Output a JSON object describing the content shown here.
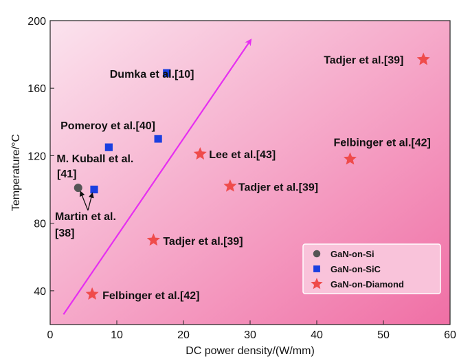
{
  "chart_data": {
    "type": "scatter",
    "title": "",
    "xlabel": "DC power density/(W/mm)",
    "ylabel": "Temperature/°C",
    "xlim": [
      0,
      60
    ],
    "ylim": [
      20,
      200
    ],
    "xticks": [
      0,
      10,
      20,
      30,
      40,
      50,
      60
    ],
    "yticks": [
      40,
      80,
      120,
      160,
      200
    ],
    "grid": false,
    "legend_position": "bottom-right",
    "background_gradient": [
      "#fbe3ee",
      "#f06fa5"
    ],
    "arrow": {
      "from": [
        2,
        26
      ],
      "to": [
        30,
        188
      ],
      "color": "#e62ff0"
    },
    "series": [
      {
        "name": "GaN-on-Si",
        "marker": "circle",
        "color": "#555555",
        "points": [
          {
            "x": 4.2,
            "y": 101,
            "label": ""
          }
        ]
      },
      {
        "name": "GaN-on-SiC",
        "marker": "square",
        "color": "#1a3fe0",
        "points": [
          {
            "x": 17.5,
            "y": 169,
            "label": "Dumka et al.[10]"
          },
          {
            "x": 16.2,
            "y": 130,
            "label": "Pomeroy et al.[40]"
          },
          {
            "x": 8.8,
            "y": 125,
            "label": "M. Kuball et al."
          },
          {
            "x": 6.6,
            "y": 100,
            "label": ""
          }
        ]
      },
      {
        "name": "GaN-on-Diamond",
        "marker": "star",
        "color": "#ef4b4b",
        "points": [
          {
            "x": 56,
            "y": 177,
            "label": "Tadjer et al.[39]"
          },
          {
            "x": 45,
            "y": 118,
            "label": "Felbinger et al.[42]"
          },
          {
            "x": 22.5,
            "y": 121,
            "label": "Lee et al.[43]"
          },
          {
            "x": 27,
            "y": 102,
            "label": "Tadjer et al.[39]"
          },
          {
            "x": 15.5,
            "y": 70,
            "label": "Tadjer et al.[39]"
          },
          {
            "x": 6.3,
            "y": 38,
            "label": "Felbinger et al.[42]"
          }
        ]
      }
    ],
    "annotations": [
      {
        "id": "kuball-ref",
        "text": "[41]"
      },
      {
        "id": "martin-line1",
        "text": "Martin et al."
      },
      {
        "id": "martin-line2",
        "text": "[38]"
      }
    ]
  }
}
